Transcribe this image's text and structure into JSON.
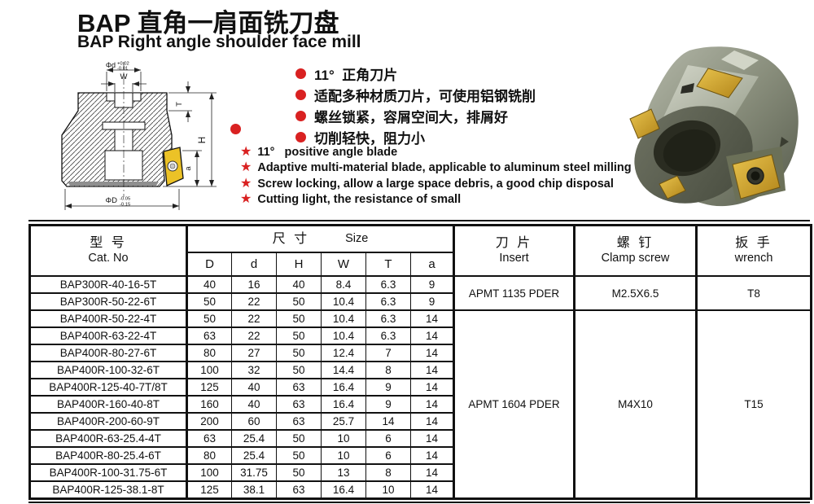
{
  "page": {
    "title_zh": "BAP 直角一肩面铣刀盘",
    "title_en": "BAP Right angle shoulder face mill"
  },
  "icons": {
    "bullet": "●",
    "star": "★"
  },
  "colors": {
    "accent_red": "#d92121",
    "insert_gold": "#ecc227",
    "line_black": "#111111"
  },
  "features_zh": [
    "11°  正角刀片",
    "适配多种材质刀片，可使用铝钢铣削",
    "螺丝锁紧，容屑空间大，排屑好",
    "切削轻快，阻力小"
  ],
  "features_en": [
    "11°   positive angle blade",
    "Adaptive multi-material blade, applicable to aluminum steel milling",
    "Screw locking, allow a large space debris, a good chip disposal",
    "Cutting light, the resistance of small"
  ],
  "drawing": {
    "phi_d": "Φd",
    "phi_d_tol_up": "+0.02",
    "phi_d_tol_dn": "-0.01",
    "w": "W",
    "t": "T",
    "h": "H",
    "a": "a",
    "phi_D": "ΦD",
    "phi_D_tol_up": "-0.05",
    "phi_D_tol_dn": "-0.15"
  },
  "table": {
    "header": {
      "cat_zh": "型 号",
      "cat_en": "Cat. No",
      "size_zh": "尺 寸",
      "size_en": "Size",
      "size_cols": [
        "D",
        "d",
        "H",
        "W",
        "T",
        "a"
      ],
      "insert_zh": "刀 片",
      "insert_en": "Insert",
      "screw_zh": "螺 钉",
      "screw_en": "Clamp screw",
      "wrench_zh": "扳 手",
      "wrench_en": "wrench"
    },
    "groups": [
      {
        "insert": "APMT 1135 PDER",
        "screw": "M2.5X6.5",
        "wrench": "T8",
        "rows": [
          [
            "BAP300R-40-16-5T",
            "40",
            "16",
            "40",
            "8.4",
            "6.3",
            "9"
          ],
          [
            "BAP300R-50-22-6T",
            "50",
            "22",
            "50",
            "10.4",
            "6.3",
            "9"
          ]
        ]
      },
      {
        "insert": "APMT 1604 PDER",
        "screw": "M4X10",
        "wrench": "T15",
        "rows": [
          [
            "BAP400R-50-22-4T",
            "50",
            "22",
            "50",
            "10.4",
            "6.3",
            "14"
          ],
          [
            "BAP400R-63-22-4T",
            "63",
            "22",
            "50",
            "10.4",
            "6.3",
            "14"
          ],
          [
            "BAP400R-80-27-6T",
            "80",
            "27",
            "50",
            "12.4",
            "7",
            "14"
          ],
          [
            "BAP400R-100-32-6T",
            "100",
            "32",
            "50",
            "14.4",
            "8",
            "14"
          ],
          [
            "BAP400R-125-40-7T/8T",
            "125",
            "40",
            "63",
            "16.4",
            "9",
            "14"
          ],
          [
            "BAP400R-160-40-8T",
            "160",
            "40",
            "63",
            "16.4",
            "9",
            "14"
          ],
          [
            "BAP400R-200-60-9T",
            "200",
            "60",
            "63",
            "25.7",
            "14",
            "14"
          ],
          [
            "BAP400R-63-25.4-4T",
            "63",
            "25.4",
            "50",
            "10",
            "6",
            "14"
          ],
          [
            "BAP400R-80-25.4-6T",
            "80",
            "25.4",
            "50",
            "10",
            "6",
            "14"
          ],
          [
            "BAP400R-100-31.75-6T",
            "100",
            "31.75",
            "50",
            "13",
            "8",
            "14"
          ],
          [
            "BAP400R-125-38.1-8T",
            "125",
            "38.1",
            "63",
            "16.4",
            "10",
            "14"
          ]
        ]
      }
    ]
  }
}
